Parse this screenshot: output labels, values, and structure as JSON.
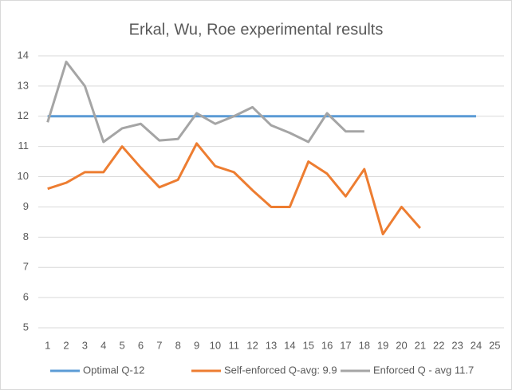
{
  "chart_data": {
    "type": "line",
    "title": "Erkal, Wu, Roe experimental results",
    "categories": [
      "1",
      "2",
      "3",
      "4",
      "5",
      "6",
      "7",
      "8",
      "9",
      "10",
      "11",
      "12",
      "13",
      "14",
      "15",
      "16",
      "17",
      "18",
      "19",
      "20",
      "21",
      "22",
      "23",
      "24",
      "25"
    ],
    "series": [
      {
        "name": "Optimal Q-12",
        "color": "#5b9bd5",
        "values": [
          12,
          12,
          12,
          12,
          12,
          12,
          12,
          12,
          12,
          12,
          12,
          12,
          12,
          12,
          12,
          12,
          12,
          12,
          12,
          12,
          12,
          12,
          12,
          12,
          null
        ]
      },
      {
        "name": "Self-enforced Q-avg: 9.9",
        "color": "#ed7d31",
        "values": [
          9.6,
          9.8,
          10.15,
          10.15,
          11.0,
          10.3,
          9.65,
          9.9,
          11.1,
          10.35,
          10.15,
          9.55,
          9.0,
          9.0,
          10.5,
          10.1,
          9.35,
          10.25,
          8.1,
          9.0,
          8.3,
          null,
          null,
          null,
          null
        ]
      },
      {
        "name": "Enforced Q - avg 11.7",
        "color": "#a5a5a5",
        "values": [
          11.8,
          13.8,
          13.0,
          11.15,
          11.6,
          11.75,
          11.2,
          11.25,
          12.1,
          11.75,
          12.0,
          12.3,
          11.7,
          11.45,
          11.15,
          12.1,
          11.5,
          11.5,
          null,
          null,
          null,
          null,
          null,
          null,
          null
        ]
      }
    ],
    "ylim": [
      5,
      14
    ],
    "yticks": [
      5,
      6,
      7,
      8,
      9,
      10,
      11,
      12,
      13,
      14
    ],
    "grid": true,
    "legend": "bottom"
  }
}
